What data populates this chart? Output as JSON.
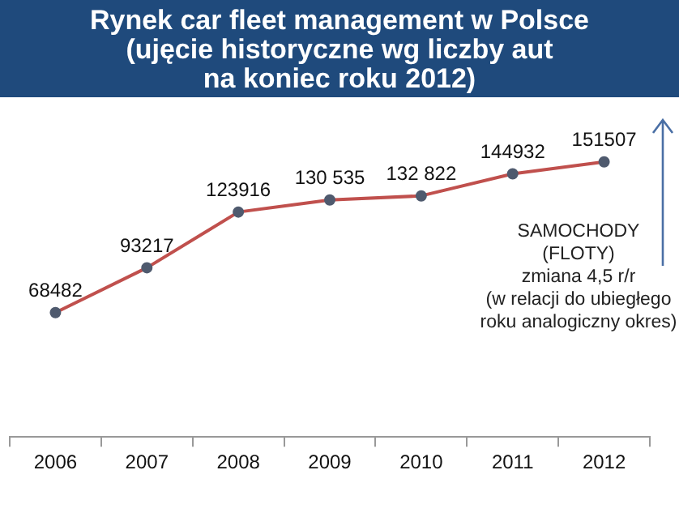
{
  "chart_data": {
    "type": "line",
    "title": "Rynek car fleet management w Polsce\n(ujęcie historyczne wg liczby aut\nna koniec roku 2012)",
    "categories": [
      "2006",
      "2007",
      "2008",
      "2009",
      "2010",
      "2011",
      "2012"
    ],
    "series": [
      {
        "color": "#c0504d",
        "values": [
          68482,
          93217,
          123916,
          130535,
          132822,
          144932,
          151507
        ],
        "value_labels": [
          "68482",
          "93217",
          "123916",
          "130 535",
          "132 822",
          "144932",
          "151507"
        ]
      }
    ],
    "tick_labels": "x",
    "marker": "circle",
    "legend": false,
    "annotations": [
      "SAMOCHODY\n(FLOTY)\nzmiana 4,5  r/r\n(w relacji do ubiegłego\nroku analogiczny okres)"
    ]
  }
}
